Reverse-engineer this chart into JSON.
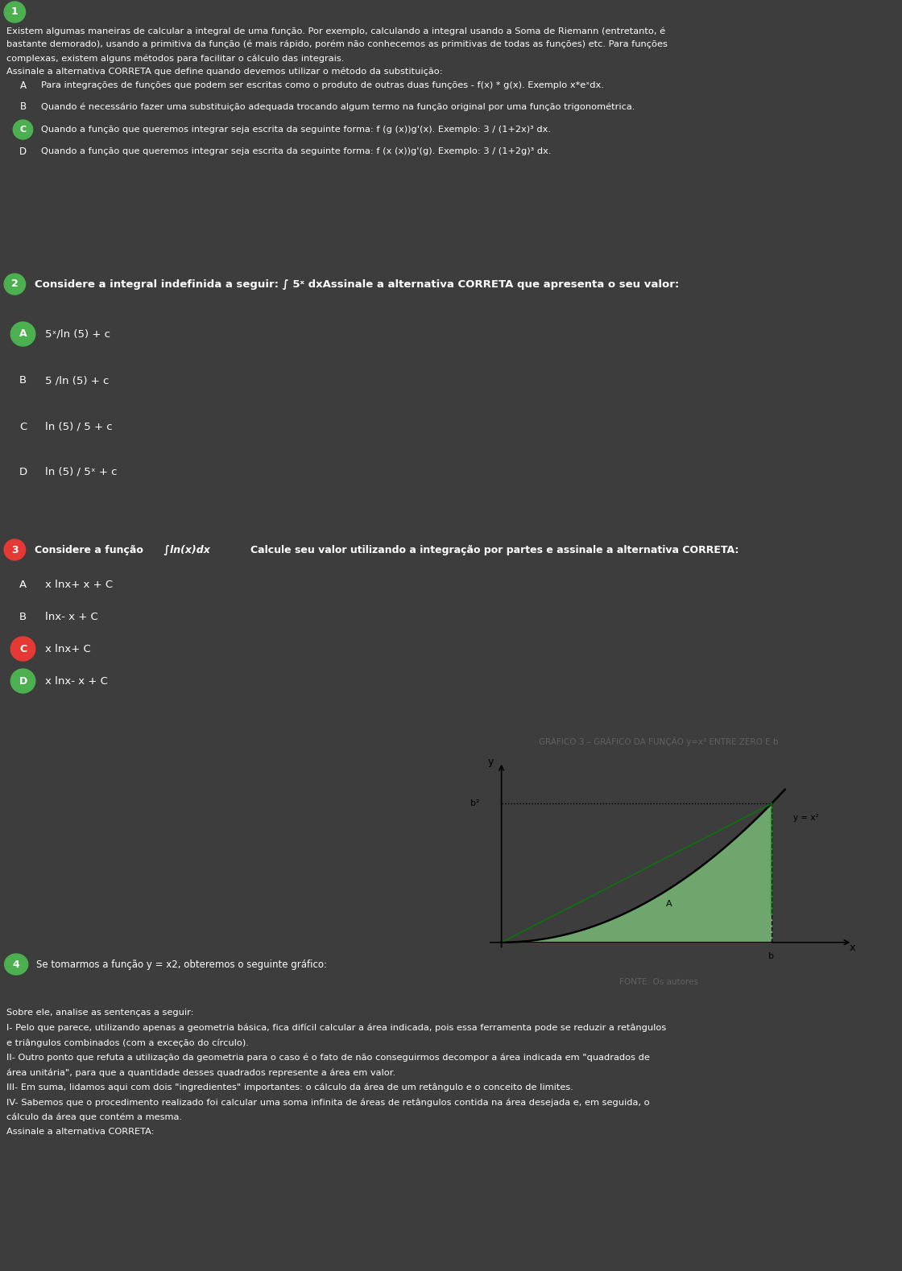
{
  "bg_dark": "#3d3d3d",
  "bg_light": "#ffffff",
  "green_color": "#4caf50",
  "red_color": "#e53935",
  "white": "#ffffff",
  "q1_intro_line1": "Existem algumas maneiras de calcular a integral de uma função. Por exemplo, calculando a integral usando a Soma de Riemann (entretanto, é",
  "q1_intro_line2": "bastante demorado), usando a primitiva da função (é mais rápido, porém não conhecemos as primitivas de todas as funções) etc. Para funções",
  "q1_intro_line3": "complexas, existem alguns métodos para facilitar o cálculo das integrais.",
  "q1_intro_line4": "Assinale a alternativa CORRETA que define quando devemos utilizar o método da substituição:",
  "q1_A": "Para integrações de funções que podem ser escritas como o produto de outras duas funções - f(x) * g(x). Exemplo x*eˣdx.",
  "q1_B": "Quando é necessário fazer uma substituição adequada trocando algum termo na função original por uma função trigonométrica.",
  "q1_C": "Quando a função que queremos integrar seja escrita da seguinte forma: f (g (x))g'(x). Exemplo: 3 / (1+2x)³ dx.",
  "q1_D": "Quando a função que queremos integrar seja escrita da seguinte forma: f (x (x))g'(g). Exemplo: 3 / (1+2g)³ dx.",
  "q2_intro": "Considere a integral indefinida a seguir: ∫ 5ˣ dxAssinale a alternativa CORRETA que apresenta o seu valor:",
  "q2_A": "5ˣ/ln (5) + c",
  "q2_B": "5 /ln (5) + c",
  "q2_C": "ln (5) / 5 + c",
  "q2_D": "ln (5) / 5ˣ + c",
  "q3_intro_pre": "Considere a função",
  "q3_intro_mid": " ∫ln(x)dx ",
  "q3_intro_post": "Calcule seu valor utilizando a integração por partes e assinale a alternativa CORRETA:",
  "q3_A": "x lnx+ x + C",
  "q3_B": "lnx- x + C",
  "q3_C": "x lnx+ C",
  "q3_D": "x lnx- x + C",
  "q4_intro": "Se tomarmos a função y = x2, obteremos o seguinte gráfico:",
  "q4_line1": "Sobre ele, analise as sentenças a seguir:",
  "q4_line2": "I- Pelo que parece, utilizando apenas a geometria básica, fica difícil calcular a área indicada, pois essa ferramenta pode se reduzir a retângulos",
  "q4_line3": "e triângulos combinados (com a exceção do círculo).",
  "q4_line4": "II- Outro ponto que refuta a utilização da geometria para o caso é o fato de não conseguirmos decompor a área indicada em \"quadrados de",
  "q4_line5": "área unitária\", para que a quantidade desses quadrados represente a área em valor.",
  "q4_line6": "III- Em suma, lidamos aqui com dois \"ingredientes\" importantes: o cálculo da área de um retângulo e o conceito de limites.",
  "q4_line7": "IV- Sabemos que o procedimento realizado foi calcular uma soma infinita de áreas de retângulos contida na área desejada e, em seguida, o",
  "q4_line8": "cálculo da área que contém a mesma.",
  "q4_line9": "Assinale a alternativa CORRETA:",
  "graph_title": "GRÁFICO 3 – GRÁFICO DA FUNÇÃO y=x² ENTRE ZERO E b",
  "graph_source": "FONTE: Os autores"
}
